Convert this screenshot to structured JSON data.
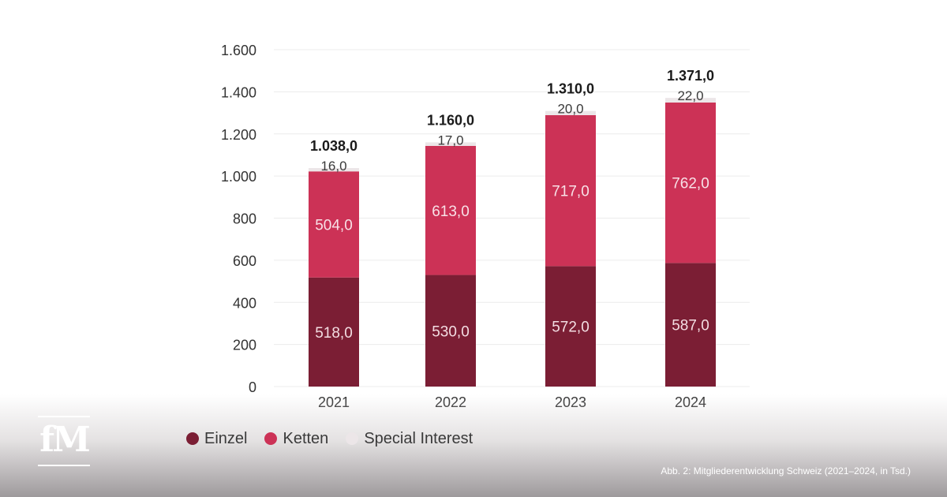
{
  "chart_data": {
    "type": "bar",
    "stacked": true,
    "categories": [
      "2021",
      "2022",
      "2023",
      "2024"
    ],
    "series": [
      {
        "name": "Einzel",
        "color": "#7b1e34",
        "values": [
          518.0,
          530.0,
          572.0,
          587.0
        ],
        "labels": [
          "518,0",
          "530,0",
          "572,0",
          "587,0"
        ]
      },
      {
        "name": "Ketten",
        "color": "#cc3256",
        "values": [
          504.0,
          613.0,
          717.0,
          762.0
        ],
        "labels": [
          "504,0",
          "613,0",
          "717,0",
          "762,0"
        ]
      },
      {
        "name": "Special Interest",
        "color": "#ece6e8",
        "values": [
          16.0,
          17.0,
          20.0,
          22.0
        ],
        "labels": [
          "16,0",
          "17,0",
          "20,0",
          "22,0"
        ]
      }
    ],
    "totals": [
      1038.0,
      1160.0,
      1310.0,
      1371.0
    ],
    "total_labels": [
      "1.038,0",
      "1.160,0",
      "1.310,0",
      "1.371,0"
    ],
    "ylim": [
      0,
      1600
    ],
    "yticks": [
      0,
      200,
      400,
      600,
      800,
      1000,
      1200,
      1400,
      1600
    ],
    "ytick_labels": [
      "0",
      "200",
      "400",
      "600",
      "800",
      "1.000",
      "1.200",
      "1.400",
      "1.600"
    ],
    "grid": true,
    "legend_position": "bottom-left",
    "title": "",
    "xlabel": "",
    "ylabel": ""
  },
  "logo": {
    "text": "fM"
  },
  "caption": "Abb. 2: Mitgliederentwicklung Schweiz (2021–2024, in Tsd.)"
}
